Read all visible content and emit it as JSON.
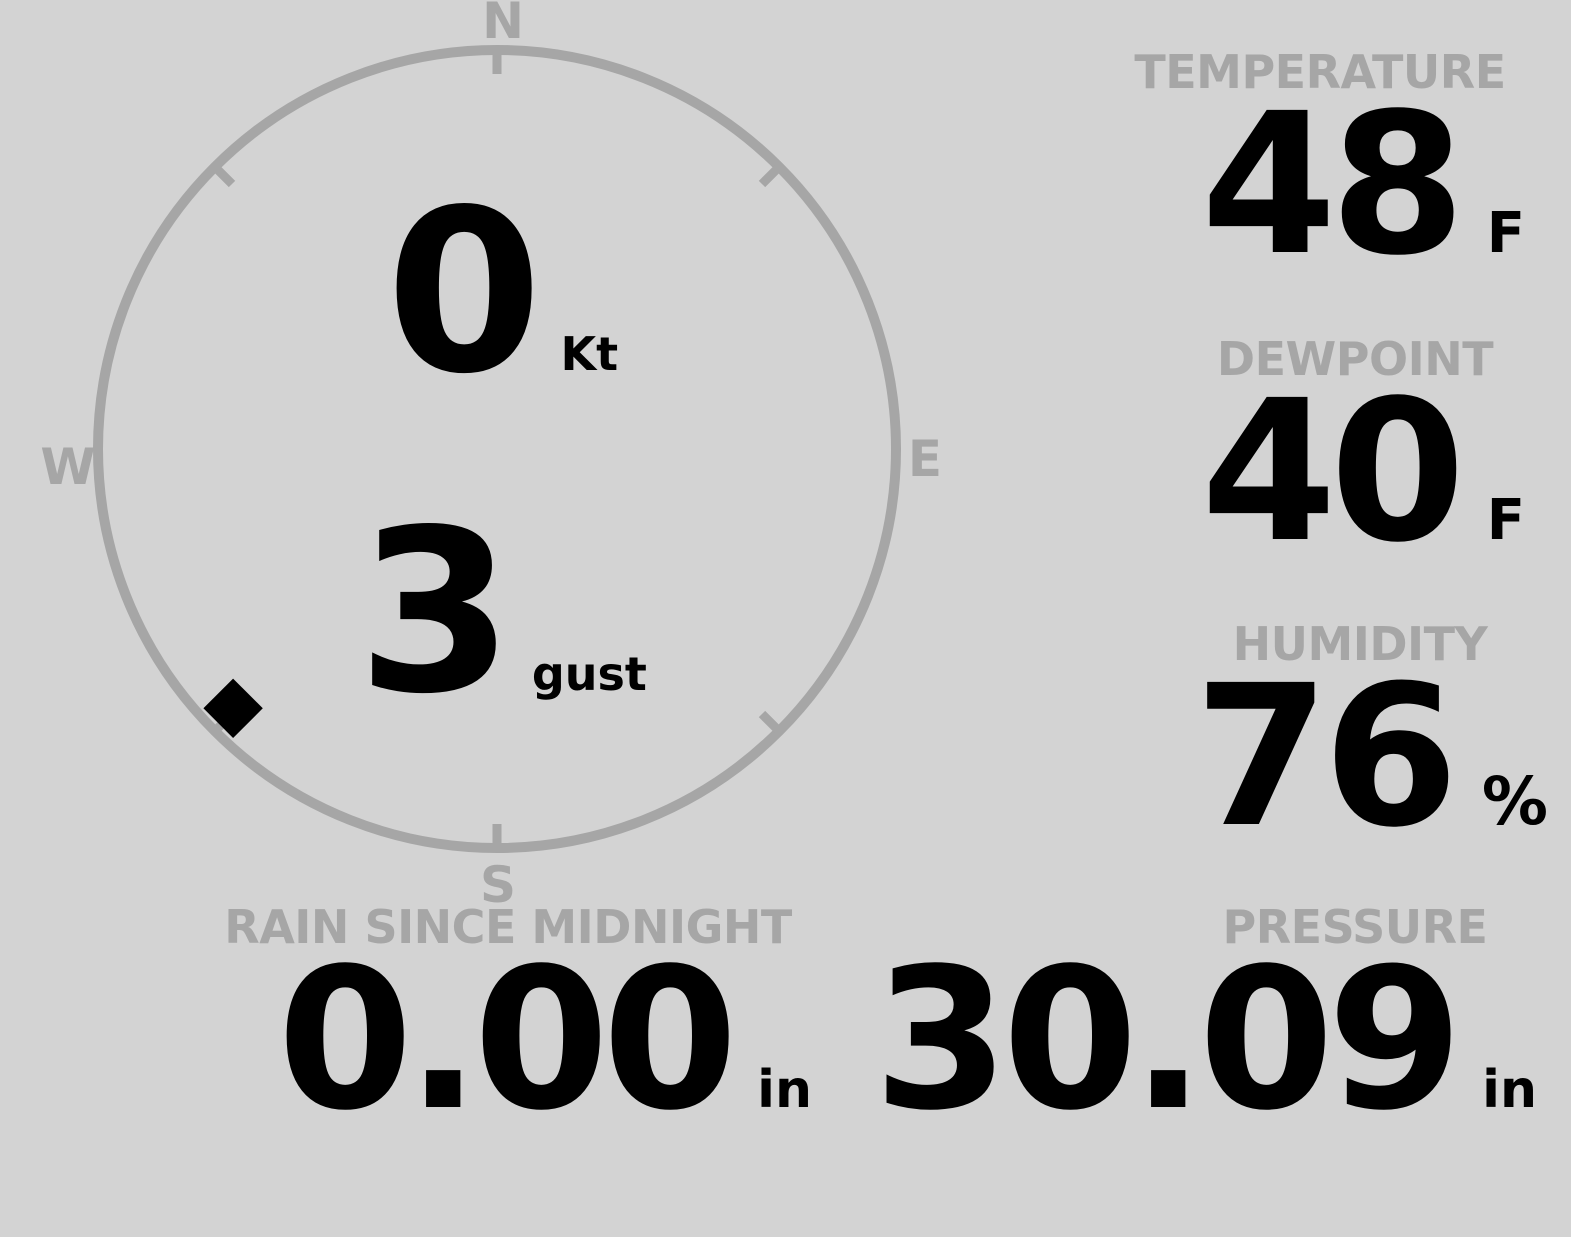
{
  "colors": {
    "background": "#d3d3d3",
    "muted": "#a6a6a6",
    "ink": "#000000"
  },
  "wind_gauge": {
    "cardinals": {
      "north": "N",
      "east": "E",
      "south": "S",
      "west": "W"
    },
    "speed": {
      "value": "0",
      "unit": "Kt"
    },
    "gust": {
      "value": "3",
      "unit": "gust"
    },
    "direction": {
      "bearing_deg": 225.5,
      "marker": "diamond"
    }
  },
  "metrics": {
    "temperature": {
      "label": "TEMPERATURE",
      "value": "48",
      "unit": "F"
    },
    "dewpoint": {
      "label": "DEWPOINT",
      "value": "40",
      "unit": "F"
    },
    "humidity": {
      "label": "HUMIDITY",
      "value": "76",
      "unit": "%"
    },
    "rain_since_midnight": {
      "label": "RAIN SINCE MIDNIGHT",
      "value": "0.00",
      "unit": "in"
    },
    "pressure": {
      "label": "PRESSURE",
      "value": "30.09",
      "unit": "in"
    }
  }
}
